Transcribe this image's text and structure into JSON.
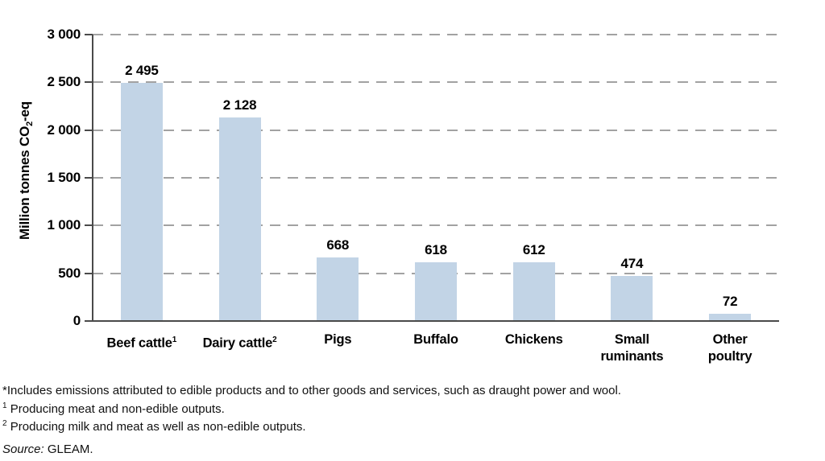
{
  "chart_data": {
    "type": "bar",
    "title": "",
    "ylabel_parts": {
      "prefix": "Million tonnes CO",
      "sub": "2",
      "suffix": "-eq"
    },
    "categories": [
      {
        "lines": [
          "Beef cattle"
        ],
        "sup": "1"
      },
      {
        "lines": [
          "Dairy cattle"
        ],
        "sup": "2"
      },
      {
        "lines": [
          "Pigs"
        ]
      },
      {
        "lines": [
          "Buffalo"
        ]
      },
      {
        "lines": [
          "Chickens"
        ]
      },
      {
        "lines": [
          "Small",
          "ruminants"
        ]
      },
      {
        "lines": [
          "Other",
          "poultry"
        ]
      }
    ],
    "values": [
      2495,
      2128,
      668,
      618,
      612,
      474,
      72
    ],
    "value_labels": [
      "2 495",
      "2 128",
      "668",
      "618",
      "612",
      "474",
      "72"
    ],
    "ylim": [
      0,
      3000
    ],
    "ytick_interval": 500,
    "ytick_labels": [
      "0",
      "500",
      "1 000",
      "1 500",
      "2 000",
      "2 500",
      "3 000"
    ],
    "grid": "horizontal-dashed",
    "legend": "none",
    "bar_color": "#c2d4e6",
    "gridline_color": "#a2a2a2",
    "axis_color": "#4a4a4a"
  },
  "footnotes": {
    "line1": "*Includes emissions attributed to edible products and to other goods and services, such as draught power and wool.",
    "line2_sup": "1",
    "line2_text": " Producing meat and non-edible outputs.",
    "line3_sup": "2",
    "line3_text": " Producing milk and meat as well as non-edible outputs.",
    "source_label": "Source:",
    "source_value": " GLEAM."
  }
}
